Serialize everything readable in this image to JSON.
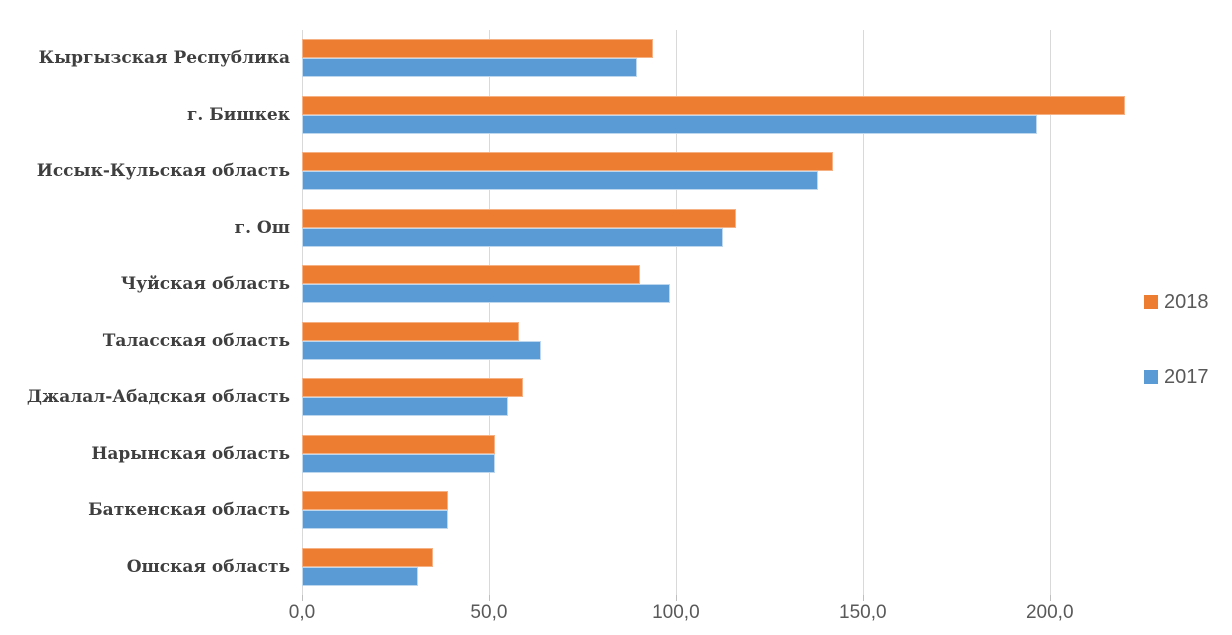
{
  "chart_data": {
    "type": "bar",
    "orientation": "horizontal",
    "title": "",
    "xlabel": "",
    "ylabel": "",
    "categories": [
      "Кыргызская Республика",
      "г. Бишкек",
      "Иссык-Кульская область",
      "г. Ош",
      "Чуйская область",
      "Таласская область",
      "Джалал-Абадская область",
      "Нарынская область",
      "Баткенская область",
      "Ошская область"
    ],
    "series": [
      {
        "name": "2018",
        "color": "#ED7D31",
        "border_color": "#F5B183",
        "values": [
          94.0,
          220.0,
          142.0,
          116.0,
          90.5,
          58.0,
          59.0,
          51.5,
          39.0,
          35.0
        ]
      },
      {
        "name": "2017",
        "color": "#5B9BD5",
        "border_color": "#BDD7EE",
        "values": [
          89.5,
          196.5,
          138.0,
          112.5,
          98.5,
          64.0,
          55.0,
          51.5,
          39.0,
          31.0
        ]
      }
    ],
    "x_axis": {
      "tick_labels": [
        "0,0",
        "50,0",
        "100,0",
        "150,0",
        "200,0"
      ],
      "tick_values": [
        0,
        50,
        100,
        150,
        200
      ],
      "xlim": [
        0,
        222
      ]
    },
    "grid": true,
    "legend_position": "right",
    "colors": {
      "gridline": "#d9d9d9",
      "tick": "#bfbfbf",
      "axis_text": "#595959",
      "category_text": "#3f3f3f"
    }
  }
}
